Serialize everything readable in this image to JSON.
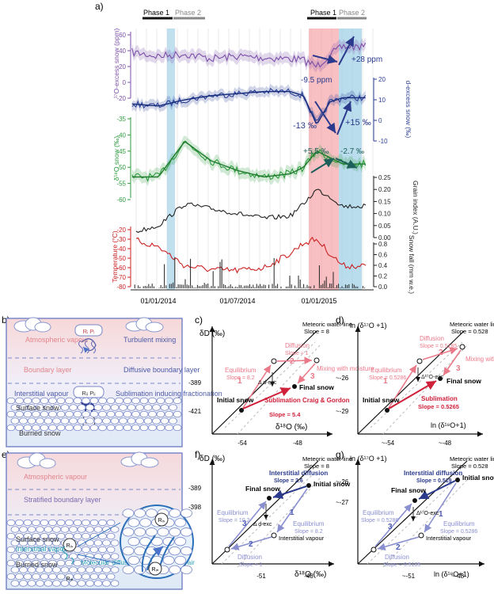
{
  "panel_labels": {
    "a": "a)",
    "b": "b)",
    "c": "c)",
    "d": "d)",
    "e": "e)",
    "f": "f)",
    "g": "g)"
  },
  "panel_a": {
    "phase_top": {
      "p1": "Phase 1",
      "p2": "Phase 2",
      "p1b": "Phase 1",
      "p2b": "Phase 2"
    },
    "dates": [
      "01/01/2014",
      "01/07/2014",
      "01/01/2015"
    ],
    "axes": {
      "o17_label": "¹⁷O-excess snow (ppm)",
      "o17_ticks": [
        "60",
        "40",
        "20",
        "0",
        "-20"
      ],
      "dexc_label": "d-excess snow (‰)",
      "dexc_ticks": [
        "20",
        "10",
        "0",
        "-10"
      ],
      "d18o_label": "δ¹⁸O snow (‰)",
      "d18o_ticks": [
        "-35",
        "-40",
        "-45",
        "-50",
        "-55",
        "-60"
      ],
      "grain_label": "Grain index (A.U.)",
      "grain_ticks": [
        "0.25",
        "0.20",
        "0.15",
        "0.10",
        "0.05",
        "0.00"
      ],
      "temp_label": "Temperature (°C)",
      "temp_ticks": [
        "-20",
        "-30",
        "-40",
        "-50",
        "-60",
        "-70",
        "-80"
      ],
      "snow_label": "Snow fall (mm w.e.)",
      "snow_ticks": [
        "0.8",
        "0.6",
        "0.4",
        "0.2",
        "0.0"
      ]
    },
    "annotations": {
      "o17_up": "+28 ppm",
      "o17_down": "-9.5 ppm",
      "dexc_down": "-13 ‰",
      "dexc_up": "+15 ‰",
      "d18o_up": "+5.5 ‰",
      "d18o_down": "-2.7 ‰"
    },
    "colors": {
      "o17": "#7b4fa8",
      "dexc": "#2b3f96",
      "d18o": "#2e9a3e",
      "grain": "#222222",
      "temp": "#cc2222",
      "phase1": "#f48d91",
      "phase2": "#8cc6e3"
    }
  },
  "panel_b": {
    "atm_vapour": "Atmospheric vapour",
    "turbulent": "Turbulent mixing",
    "boundary": "Boundary layer",
    "diffusive": "Diffusive boundary layer",
    "interstitial": "Interstitial vapour",
    "sublimation": "Sublimation inducing fractionation",
    "surface_snow": "Surface snow",
    "buried_snow": "Burried snow",
    "r_top": "Rᵢ Pᵢ",
    "r_mid": "Rᵢᵢ Pᵢᵢ",
    "r_low": "Rₛ"
  },
  "panel_c": {
    "ylabel": "δD (‰)",
    "xlabel": "δ¹⁸O (‰)",
    "yticks": [
      "-389",
      "-421"
    ],
    "xticks": [
      "-54",
      "-48"
    ],
    "mwl": "Meteoric water line",
    "mwl_slope": "Slope = 8",
    "diffusion": "Diffusion",
    "diffusion_slope": "Slope ≈ 1",
    "equilibrium": "Equilibrium",
    "equilibrium_slope": "Slope = 8.2",
    "mixing": "Mixing with moisture",
    "sublimation": "Sublimation Craig & Gordon",
    "sublimation_slope": "Slope = 5.4",
    "delta_exc": "Δ d-exc",
    "initial": "Initial snow",
    "final": "Final snow",
    "n1": "1",
    "n2": "2",
    "n3": "3"
  },
  "panel_d": {
    "ylabel": "ln (δ¹⁷O +1)",
    "xlabel": "ln (δ¹⁸O+1)",
    "yticks": [
      "~-26",
      "~-29"
    ],
    "xticks": [
      "~-54",
      "~-48"
    ],
    "mwl": "Meteoric water line",
    "mwl_slope": "Slope = 0.528",
    "diffusion": "Diffusion",
    "diffusion_slope": "Slope = 0.5185",
    "equilibrium": "Equilibrium",
    "equilibrium_slope": "Slope = 0.5286",
    "mixing": "Mixing with moisture",
    "sublimation": "Sublimation",
    "sublimation_slope": "Slope = 0.5265",
    "delta_exc": "Δ¹⁷O-exc",
    "initial": "Initial snow",
    "final": "Final snow",
    "n1": "1",
    "n2": "2",
    "n3": "3"
  },
  "panel_e": {
    "atm_vapour": "Atmospheric vapour",
    "stratified": "Stratified boundary layer",
    "surface_snow": "Surface snow",
    "interstitial": "Interstitial vapour",
    "buried_snow": "Burried snow",
    "molecular": "Molecular diffusion in the interstitial air",
    "r_s": "Rᵢₛ",
    "r_n": "Rᵢₙ"
  },
  "panel_f": {
    "ylabel": "δD (‰)",
    "xlabel": "δ¹⁸O (‰)",
    "yticks": [
      "-389",
      "-398"
    ],
    "xticks": [
      "-51",
      "-48"
    ],
    "mwl": "Meteoric water line",
    "mwl_slope": "Slope = 8",
    "interstitial_diff": "Interstitial diffusion",
    "interstitial_slope": "Slope = 2.6",
    "equilibrium_l": "Equilibrium",
    "equilibrium_l_slope": "Slope = 10.2",
    "equilibrium_r": "Equilibrium",
    "equilibrium_r_slope": "Slope = 8.2",
    "diffusion": "Diffusion",
    "diffusion_slope": "Slope ≈ 1",
    "delta_exc": "Δ d-exc",
    "initial": "Initial snow",
    "final": "Final snow",
    "int_vapour": "Interstitial vapour",
    "n1": "1",
    "n2": "2",
    "n3": "3"
  },
  "panel_g": {
    "ylabel": "ln (δ¹⁷O +1)",
    "xlabel": "ln (δ¹⁸O+1)",
    "yticks": [
      "~-26",
      "~-27"
    ],
    "xticks": [
      "~-51",
      "~-48"
    ],
    "mwl": "Meteoric water line",
    "mwl_slope": "Slope = 0.528",
    "interstitial_diff": "Interstitial diffusion",
    "interstitial_slope": "Slope = 0.519",
    "equilibrium_l": "Equilibrium",
    "equilibrium_l_slope": "Slope = 0.5286",
    "equilibrium_r": "Equilibrium",
    "equilibrium_r_slope": "Slope = 0.5286",
    "diffusion": "Diffusion",
    "diffusion_slope": "Slope = 0.5185",
    "delta_exc": "Δ¹⁷O-exc",
    "initial": "Initial snow",
    "final": "Final snow",
    "int_vapour": "Interstitial vapour",
    "n1": "1",
    "n2": "2",
    "n3": "3"
  },
  "chart_data": [
    {
      "type": "line",
      "title": "",
      "ylabel": "¹⁷O-excess snow (ppm)",
      "ylim": [
        -20,
        60
      ],
      "x": [
        "2013-11",
        "2014-01",
        "2014-03",
        "2014-05",
        "2014-07",
        "2014-09",
        "2014-11",
        "2014-12",
        "2015-01",
        "2015-02",
        "2015-03"
      ],
      "series": [
        {
          "values": [
            38,
            33,
            36,
            30,
            33,
            31,
            30,
            28,
            20,
            35,
            45
          ]
        }
      ]
    },
    {
      "type": "line",
      "title": "",
      "ylabel": "d-excess snow (‰)",
      "ylim": [
        -10,
        20
      ],
      "x": [
        "2013-11",
        "2014-01",
        "2014-03",
        "2014-05",
        "2014-07",
        "2014-09",
        "2014-11",
        "2014-12",
        "2015-01",
        "2015-02",
        "2015-03"
      ],
      "series": [
        {
          "values": [
            8,
            7,
            10,
            12,
            13,
            14,
            14,
            12,
            -2,
            9,
            11
          ]
        }
      ]
    },
    {
      "type": "line",
      "title": "",
      "ylabel": "δ¹⁸O snow (‰)",
      "ylim": [
        -60,
        -35
      ],
      "x": [
        "2013-11",
        "2014-01",
        "2014-03",
        "2014-05",
        "2014-07",
        "2014-09",
        "2014-11",
        "2014-12",
        "2015-01",
        "2015-02",
        "2015-03"
      ],
      "series": [
        {
          "values": [
            -53,
            -53,
            -42,
            -48,
            -51,
            -53,
            -52,
            -50,
            -45,
            -47,
            -49
          ]
        }
      ]
    },
    {
      "type": "line",
      "title": "",
      "ylabel": "Grain index (A.U.)",
      "ylim": [
        0,
        0.25
      ],
      "x": [
        "2013-11",
        "2014-01",
        "2014-03",
        "2014-05",
        "2014-07",
        "2014-09",
        "2014-11",
        "2014-12",
        "2015-01",
        "2015-02",
        "2015-03"
      ],
      "series": [
        {
          "values": [
            0.02,
            0.05,
            0.14,
            0.12,
            0.1,
            0.08,
            0.09,
            0.14,
            0.2,
            0.17,
            0.13
          ]
        }
      ]
    },
    {
      "type": "line",
      "title": "",
      "ylabel": "Temperature (°C)",
      "ylim": [
        -80,
        -20
      ],
      "x": [
        "2013-11",
        "2014-01",
        "2014-03",
        "2014-05",
        "2014-07",
        "2014-09",
        "2014-11",
        "2014-12",
        "2015-01",
        "2015-02",
        "2015-03"
      ],
      "series": [
        {
          "values": [
            -30,
            -38,
            -58,
            -62,
            -63,
            -60,
            -45,
            -34,
            -30,
            -45,
            -58
          ]
        }
      ]
    }
  ]
}
